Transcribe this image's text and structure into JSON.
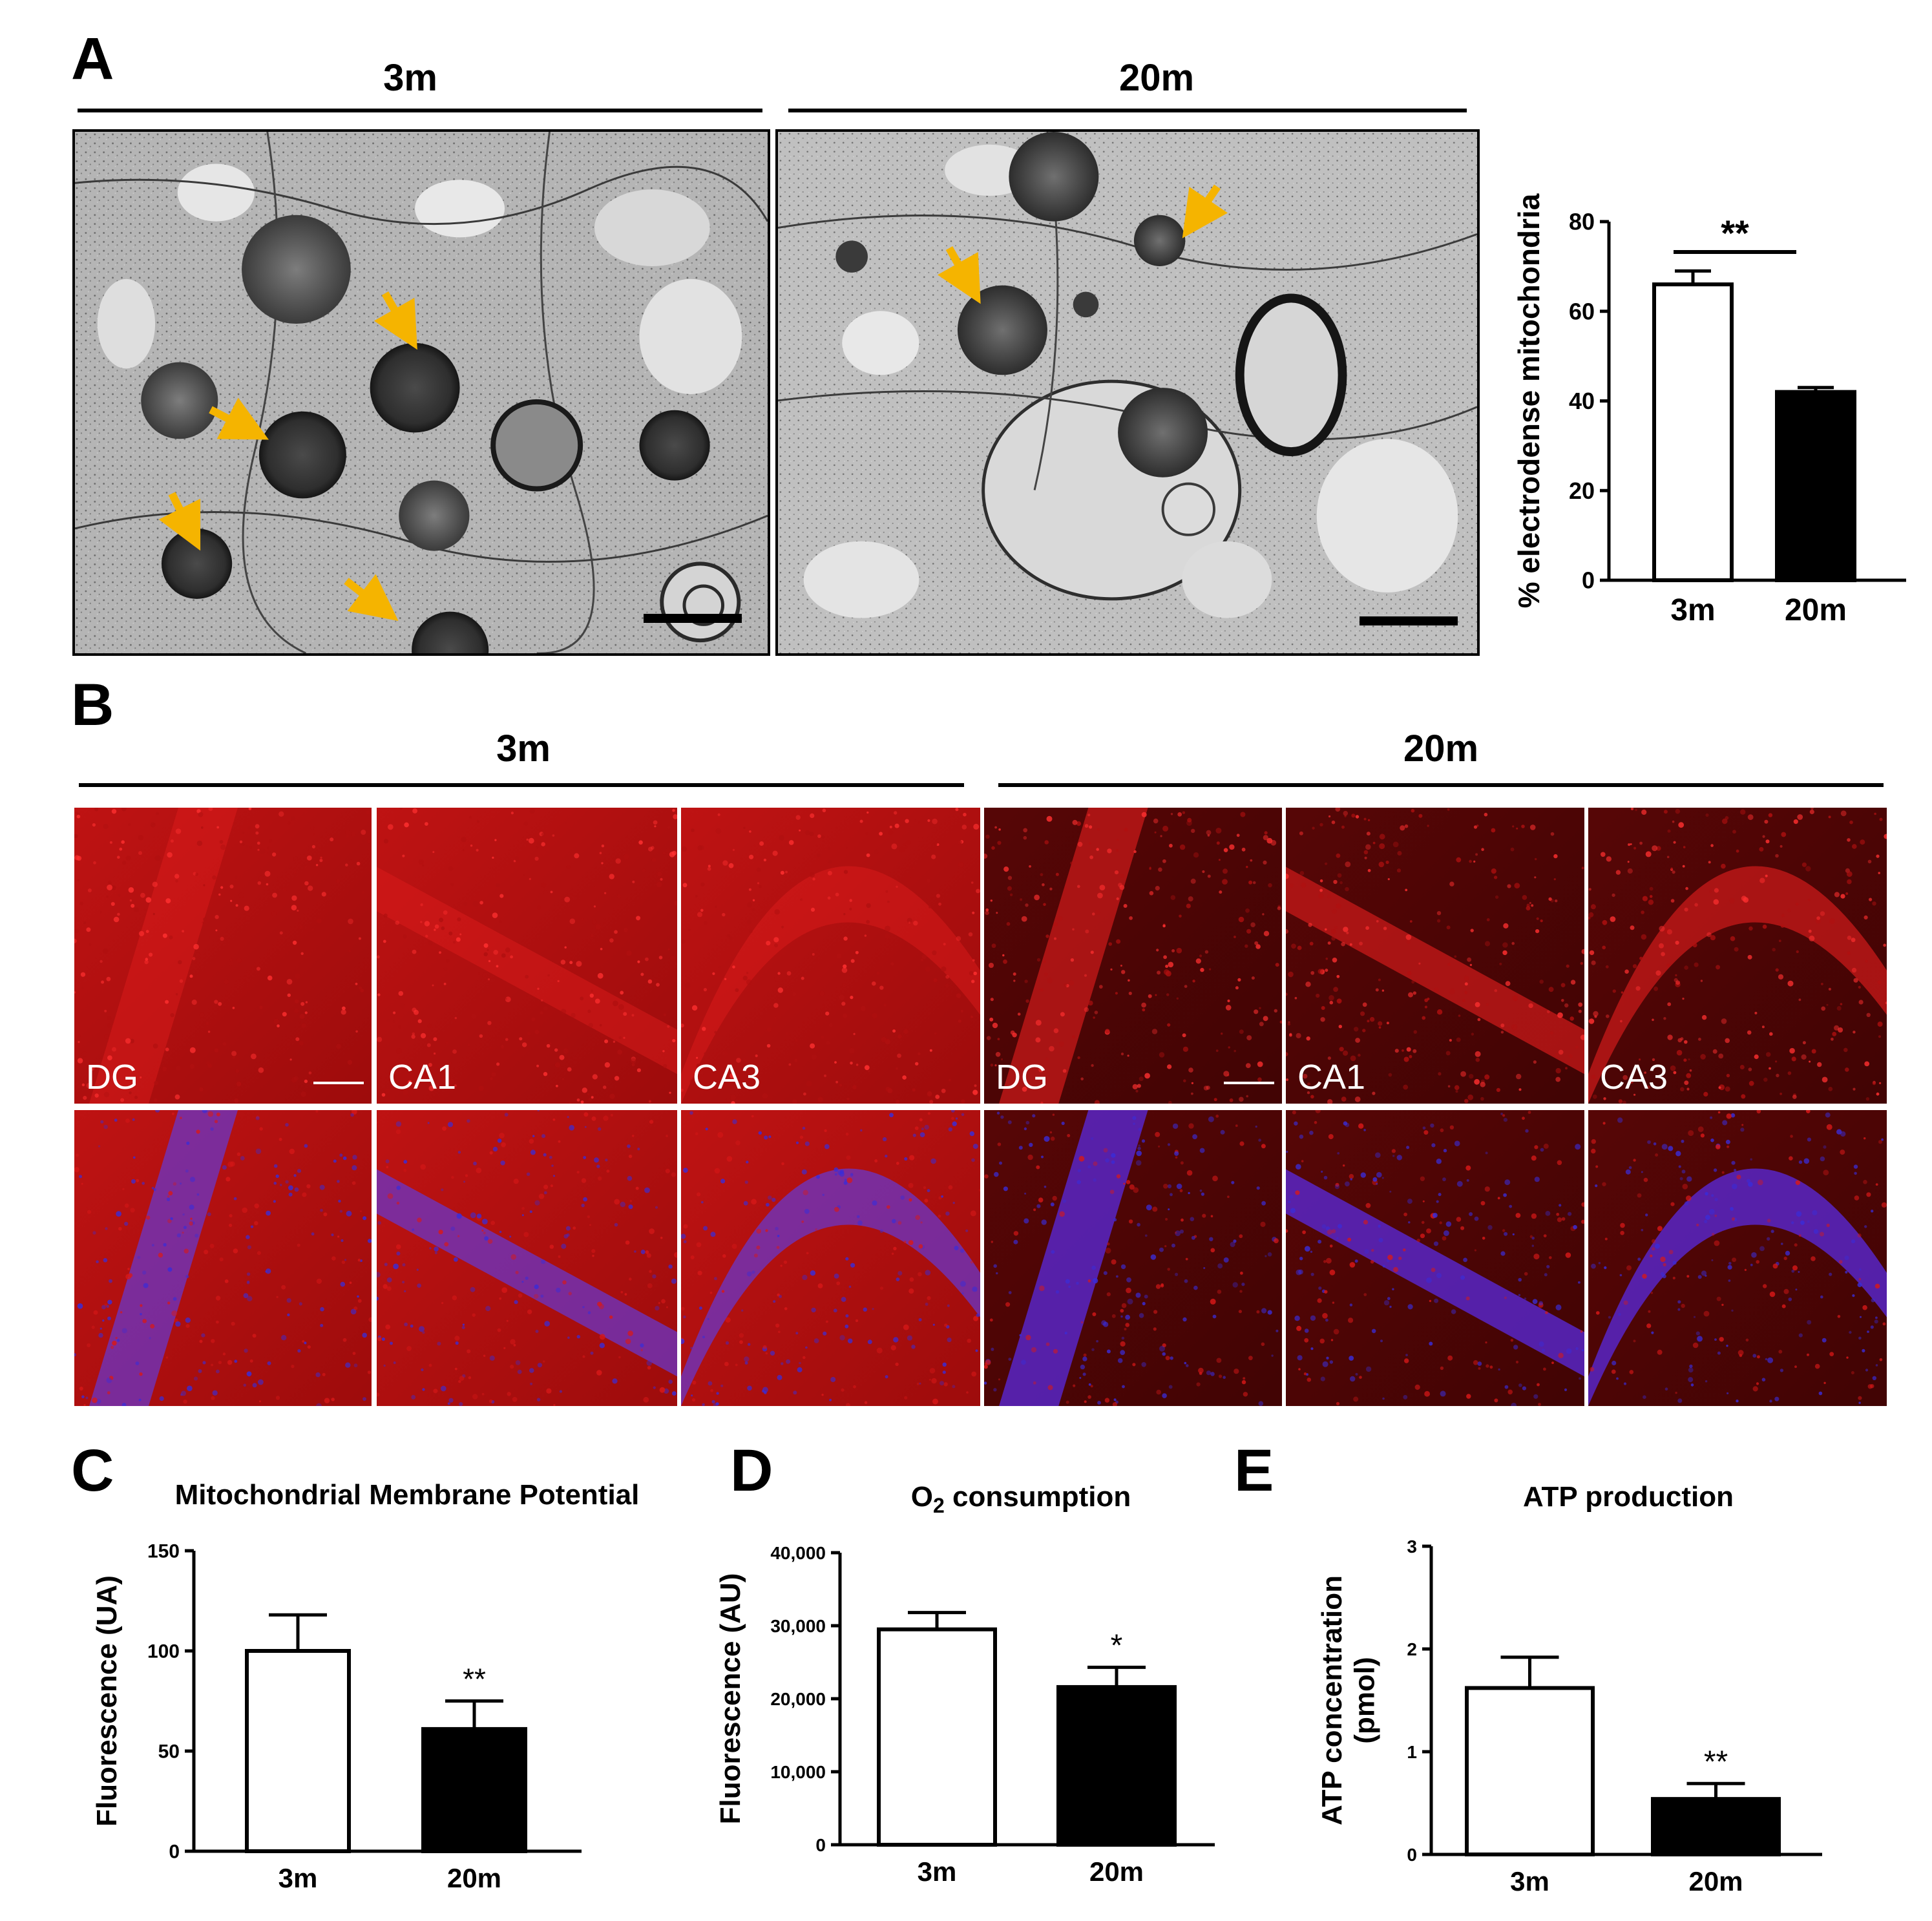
{
  "panels": {
    "A": {
      "letter": "A",
      "groups": [
        "3m",
        "20m"
      ]
    },
    "B": {
      "letter": "B",
      "groups": [
        "3m",
        "20m"
      ],
      "regions": [
        "DG",
        "CA1",
        "CA3",
        "DG",
        "CA1",
        "CA3"
      ]
    },
    "C": {
      "letter": "C"
    },
    "D": {
      "letter": "D"
    },
    "E": {
      "letter": "E"
    }
  },
  "colors": {
    "arrow": "#f5b400",
    "bar_3m": "#ffffff",
    "bar_20m": "#000000",
    "fluor_red": "#d81818",
    "fluor_blue": "#3a2cd8"
  },
  "chart_data": [
    {
      "id": "A",
      "type": "bar",
      "title": "",
      "categories": [
        "3m",
        "20m"
      ],
      "values": [
        66,
        42
      ],
      "errors": [
        3,
        1
      ],
      "ylabel": "% electrodense mitochondria",
      "xlabel": "",
      "ylim": [
        0,
        80
      ],
      "yticks": [
        "0",
        "20",
        "40",
        "60",
        "80"
      ],
      "significance": "**",
      "bar_fill": [
        "#ffffff",
        "#000000"
      ]
    },
    {
      "id": "C",
      "type": "bar",
      "title": "Mitochondrial Membrane Potential",
      "categories": [
        "3m",
        "20m"
      ],
      "values": [
        100,
        61
      ],
      "errors": [
        18,
        14
      ],
      "ylabel": "Fluorescence (UA)",
      "xlabel": "",
      "ylim": [
        0,
        150
      ],
      "yticks": [
        "0",
        "50",
        "100",
        "150"
      ],
      "significance": "**",
      "bar_fill": [
        "#ffffff",
        "#000000"
      ]
    },
    {
      "id": "D",
      "type": "bar",
      "title_main": "O",
      "title_sub": "2",
      "title_rest": " consumption",
      "categories": [
        "3m",
        "20m"
      ],
      "values": [
        29500,
        21600
      ],
      "errors": [
        2300,
        2700
      ],
      "ylabel": "Fluorescence (AU)",
      "xlabel": "",
      "ylim": [
        0,
        40000
      ],
      "yticks": [
        "0",
        "10,000",
        "20,000",
        "30,000",
        "40,000"
      ],
      "significance": "*",
      "bar_fill": [
        "#ffffff",
        "#000000"
      ]
    },
    {
      "id": "E",
      "type": "bar",
      "title": "ATP production",
      "categories": [
        "3m",
        "20m"
      ],
      "values": [
        1.62,
        0.54
      ],
      "errors": [
        0.3,
        0.15
      ],
      "ylabel": "ATP concentration (pmol)",
      "xlabel": "",
      "ylim": [
        0,
        3
      ],
      "yticks": [
        "0",
        "1",
        "2",
        "3"
      ],
      "significance": "**",
      "bar_fill": [
        "#ffffff",
        "#000000"
      ]
    }
  ]
}
